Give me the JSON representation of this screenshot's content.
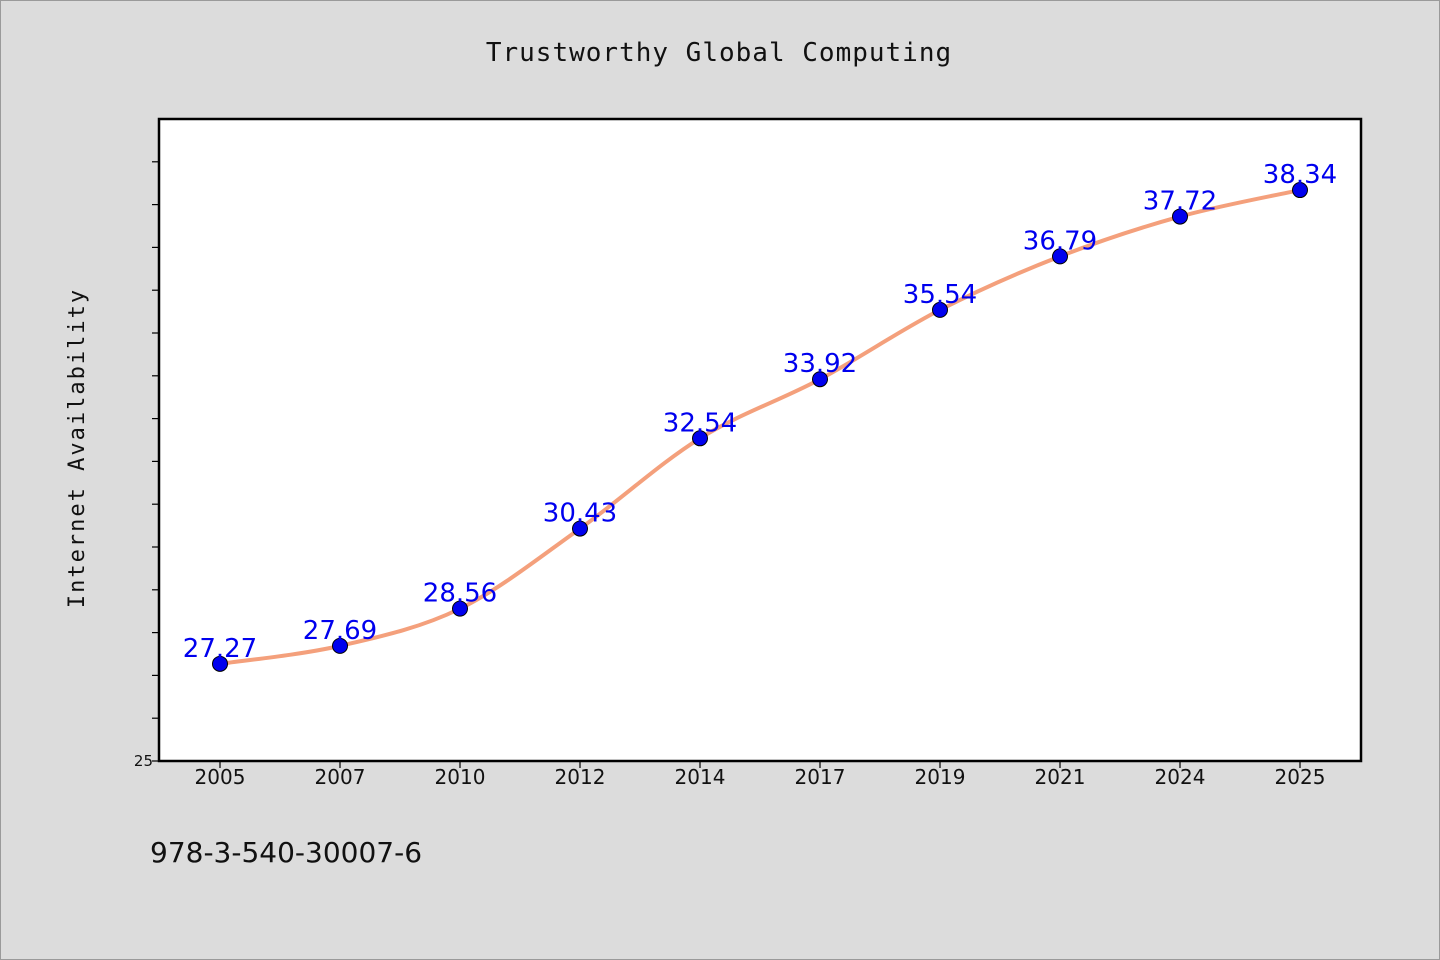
{
  "chart_data": {
    "type": "line",
    "title": "Trustworthy Global Computing",
    "xlabel": "",
    "ylabel": "Internet Availability",
    "categories": [
      "2005",
      "2007",
      "2010",
      "2012",
      "2014",
      "2017",
      "2019",
      "2021",
      "2024",
      "2025"
    ],
    "series": [
      {
        "values": [
          27.27,
          27.69,
          28.56,
          30.43,
          32.54,
          33.92,
          35.54,
          36.79,
          37.72,
          38.34
        ],
        "line_color": "#f4a07c",
        "marker_color": "#0000ee"
      }
    ],
    "ylim": [
      25,
      40
    ],
    "yticks_labeled": [
      "25"
    ],
    "ytick_step": 1,
    "grid": false,
    "legend": "none",
    "data_labels": true
  },
  "footer_text": "978-3-540-30007-6"
}
